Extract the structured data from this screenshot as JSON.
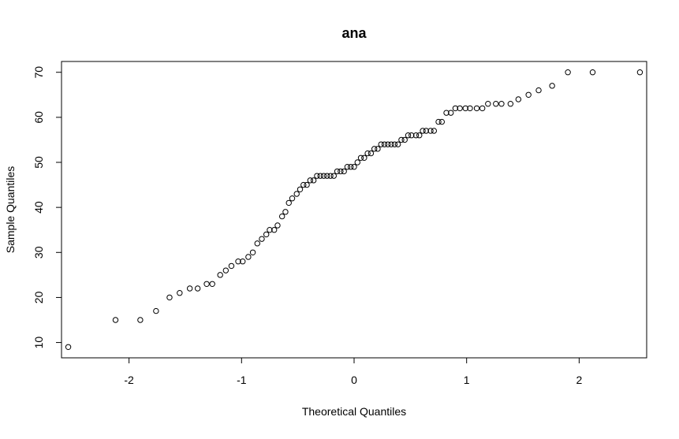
{
  "chart_data": {
    "type": "scatter",
    "title": "ana",
    "xlabel": "Theoretical Quantiles",
    "ylabel": "Sample Quantiles",
    "xlim": [
      -2.6,
      2.6
    ],
    "ylim": [
      6.6,
      72.4
    ],
    "x_ticks": [
      -2,
      -1,
      0,
      1,
      2
    ],
    "y_ticks": [
      10,
      20,
      30,
      40,
      50,
      60,
      70
    ],
    "x_tick_labels": [
      "-2",
      "-1",
      "0",
      "1",
      "2"
    ],
    "y_tick_labels": [
      "10",
      "20",
      "30",
      "40",
      "50",
      "60",
      "70"
    ],
    "grid": false,
    "series": [
      {
        "marker": "open-circle",
        "color": "#000000",
        "x": [
          -2.54,
          -2.12,
          -1.9,
          -1.76,
          -1.64,
          -1.55,
          -1.46,
          -1.39,
          -1.31,
          -1.26,
          -1.19,
          -1.14,
          -1.09,
          -1.03,
          -0.99,
          -0.94,
          -0.9,
          -0.86,
          -0.82,
          -0.78,
          -0.75,
          -0.71,
          -0.68,
          -0.64,
          -0.61,
          -0.58,
          -0.55,
          -0.51,
          -0.48,
          -0.45,
          -0.42,
          -0.39,
          -0.36,
          -0.33,
          -0.3,
          -0.27,
          -0.24,
          -0.21,
          -0.18,
          -0.15,
          -0.12,
          -0.09,
          -0.06,
          -0.03,
          0.0,
          0.03,
          0.06,
          0.09,
          0.12,
          0.15,
          0.18,
          0.21,
          0.24,
          0.27,
          0.3,
          0.33,
          0.36,
          0.39,
          0.42,
          0.45,
          0.48,
          0.51,
          0.55,
          0.58,
          0.61,
          0.64,
          0.68,
          0.71,
          0.75,
          0.78,
          0.82,
          0.86,
          0.9,
          0.94,
          0.99,
          1.03,
          1.09,
          1.14,
          1.19,
          1.26,
          1.31,
          1.39,
          1.46,
          1.55,
          1.64,
          1.76,
          1.9,
          2.12,
          2.54
        ],
        "y": [
          9,
          15,
          15,
          17,
          20,
          21,
          22,
          22,
          23,
          23,
          25,
          26,
          27,
          28,
          28,
          29,
          30,
          32,
          33,
          34,
          35,
          35,
          36,
          38,
          39,
          41,
          42,
          43,
          44,
          45,
          45,
          46,
          46,
          47,
          47,
          47,
          47,
          47,
          47,
          48,
          48,
          48,
          49,
          49,
          49,
          50,
          51,
          51,
          52,
          52,
          53,
          53,
          54,
          54,
          54,
          54,
          54,
          54,
          55,
          55,
          56,
          56,
          56,
          56,
          57,
          57,
          57,
          57,
          59,
          59,
          61,
          61,
          62,
          62,
          62,
          62,
          62,
          62,
          63,
          63,
          63,
          63,
          64,
          65,
          66,
          67,
          70,
          70,
          70
        ]
      }
    ]
  }
}
